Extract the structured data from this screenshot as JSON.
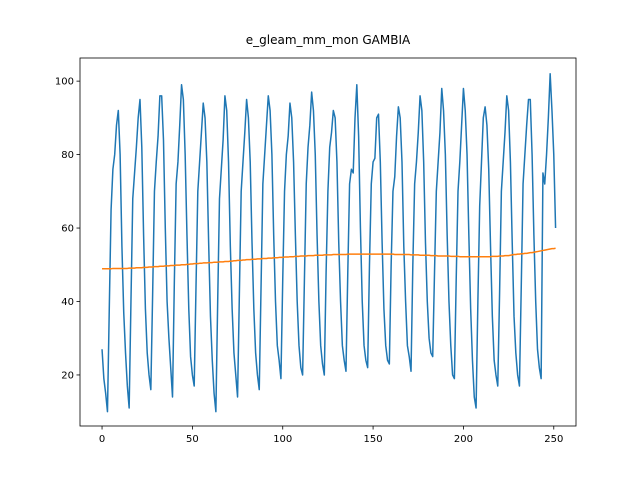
{
  "chart_data": {
    "type": "line",
    "title": "e_gleam_mm_mon GAMBIA",
    "x": [
      0,
      1,
      2,
      3,
      4,
      5,
      6,
      7,
      8,
      9,
      10,
      11,
      12,
      13,
      14,
      15,
      16,
      17,
      18,
      19,
      20,
      21,
      22,
      23,
      24,
      25,
      26,
      27,
      28,
      29,
      30,
      31,
      32,
      33,
      34,
      35,
      36,
      37,
      38,
      39,
      40,
      41,
      42,
      43,
      44,
      45,
      46,
      47,
      48,
      49,
      50,
      51,
      52,
      53,
      54,
      55,
      56,
      57,
      58,
      59,
      60,
      61,
      62,
      63,
      64,
      65,
      66,
      67,
      68,
      69,
      70,
      71,
      72,
      73,
      74,
      75,
      76,
      77,
      78,
      79,
      80,
      81,
      82,
      83,
      84,
      85,
      86,
      87,
      88,
      89,
      90,
      91,
      92,
      93,
      94,
      95,
      96,
      97,
      98,
      99,
      100,
      101,
      102,
      103,
      104,
      105,
      106,
      107,
      108,
      109,
      110,
      111,
      112,
      113,
      114,
      115,
      116,
      117,
      118,
      119,
      120,
      121,
      122,
      123,
      124,
      125,
      126,
      127,
      128,
      129,
      130,
      131,
      132,
      133,
      134,
      135,
      136,
      137,
      138,
      139,
      140,
      141,
      142,
      143,
      144,
      145,
      146,
      147,
      148,
      149,
      150,
      151,
      152,
      153,
      154,
      155,
      156,
      157,
      158,
      159,
      160,
      161,
      162,
      163,
      164,
      165,
      166,
      167,
      168,
      169,
      170,
      171,
      172,
      173,
      174,
      175,
      176,
      177,
      178,
      179,
      180,
      181,
      182,
      183,
      184,
      185,
      186,
      187,
      188,
      189,
      190,
      191,
      192,
      193,
      194,
      195,
      196,
      197,
      198,
      199,
      200,
      201,
      202,
      203,
      204,
      205,
      206,
      207,
      208,
      209,
      210,
      211,
      212,
      213,
      214,
      215,
      216,
      217,
      218,
      219,
      220,
      221,
      222,
      223,
      224,
      225,
      226,
      227,
      228,
      229,
      230,
      231,
      232,
      233,
      234,
      235,
      236,
      237,
      238,
      239,
      240,
      241,
      242,
      243,
      244,
      245,
      246,
      247,
      248,
      249,
      250,
      251
    ],
    "series": [
      {
        "color": "#1f77b4",
        "values": [
          27,
          19,
          15,
          10,
          38,
          65,
          76,
          80,
          88,
          92,
          80,
          55,
          37,
          26,
          17,
          11,
          40,
          68,
          75,
          82,
          90,
          95,
          82,
          58,
          38,
          26,
          20,
          16,
          42,
          70,
          78,
          85,
          96,
          96,
          84,
          60,
          40,
          30,
          22,
          14,
          45,
          72,
          78,
          88,
          99,
          95,
          80,
          58,
          38,
          25,
          20,
          17,
          44,
          70,
          78,
          86,
          94,
          90,
          78,
          56,
          36,
          24,
          15,
          10,
          40,
          68,
          76,
          84,
          96,
          92,
          78,
          55,
          38,
          26,
          20,
          14,
          42,
          70,
          78,
          86,
          95,
          90,
          78,
          56,
          38,
          26,
          20,
          16,
          44,
          72,
          80,
          88,
          96,
          92,
          80,
          58,
          40,
          28,
          24,
          19,
          46,
          70,
          80,
          85,
          94,
          90,
          78,
          58,
          40,
          28,
          22,
          20,
          46,
          72,
          82,
          88,
          97,
          92,
          80,
          58,
          40,
          28,
          23,
          20,
          48,
          70,
          82,
          86,
          92,
          90,
          78,
          56,
          40,
          28,
          24,
          21,
          48,
          72,
          76,
          75,
          90,
          99,
          85,
          60,
          40,
          28,
          24,
          22,
          50,
          72,
          78,
          79,
          90,
          91,
          78,
          56,
          38,
          28,
          24,
          23,
          50,
          70,
          74,
          85,
          93,
          90,
          78,
          55,
          40,
          28,
          25,
          21,
          50,
          72,
          78,
          86,
          96,
          92,
          78,
          56,
          40,
          30,
          26,
          25,
          48,
          70,
          78,
          86,
          98,
          92,
          80,
          58,
          40,
          28,
          20,
          19,
          46,
          70,
          78,
          88,
          98,
          92,
          80,
          58,
          38,
          24,
          14,
          11,
          40,
          66,
          78,
          90,
          93,
          88,
          76,
          55,
          36,
          24,
          20,
          17,
          42,
          70,
          78,
          86,
          96,
          92,
          78,
          56,
          36,
          26,
          20,
          17,
          44,
          72,
          80,
          88,
          95,
          95,
          80,
          58,
          40,
          27,
          22,
          19,
          75,
          72,
          80,
          90,
          102,
          92,
          80,
          60
        ]
      },
      {
        "color": "#ff7f0e",
        "values": [
          48.9,
          48.9,
          48.9,
          48.9,
          48.9,
          48.9,
          49.0,
          49.0,
          49.0,
          49.0,
          49.0,
          49.0,
          49.0,
          49.0,
          49.0,
          49.1,
          49.1,
          49.1,
          49.1,
          49.2,
          49.2,
          49.2,
          49.2,
          49.3,
          49.3,
          49.3,
          49.4,
          49.4,
          49.4,
          49.5,
          49.5,
          49.5,
          49.6,
          49.6,
          49.6,
          49.7,
          49.7,
          49.7,
          49.8,
          49.8,
          49.8,
          49.9,
          49.9,
          49.9,
          50.0,
          50.0,
          50.0,
          50.1,
          50.1,
          50.2,
          50.2,
          50.3,
          50.3,
          50.3,
          50.4,
          50.4,
          50.5,
          50.5,
          50.5,
          50.6,
          50.6,
          50.6,
          50.7,
          50.7,
          50.7,
          50.8,
          50.8,
          50.8,
          50.9,
          50.9,
          50.9,
          51.0,
          51.0,
          51.1,
          51.1,
          51.2,
          51.2,
          51.2,
          51.3,
          51.3,
          51.4,
          51.4,
          51.4,
          51.5,
          51.5,
          51.5,
          51.6,
          51.6,
          51.6,
          51.7,
          51.7,
          51.7,
          51.8,
          51.8,
          51.8,
          51.9,
          51.9,
          51.9,
          52.0,
          52.0,
          52.0,
          52.1,
          52.1,
          52.1,
          52.2,
          52.2,
          52.2,
          52.3,
          52.3,
          52.3,
          52.4,
          52.4,
          52.4,
          52.4,
          52.5,
          52.5,
          52.5,
          52.5,
          52.6,
          52.6,
          52.6,
          52.6,
          52.6,
          52.7,
          52.7,
          52.7,
          52.7,
          52.7,
          52.8,
          52.8,
          52.8,
          52.8,
          52.8,
          52.8,
          52.8,
          52.8,
          52.9,
          52.9,
          52.9,
          52.9,
          52.9,
          52.9,
          52.9,
          52.9,
          52.9,
          52.9,
          52.9,
          52.9,
          52.9,
          52.9,
          52.9,
          52.9,
          52.9,
          52.9,
          52.9,
          52.9,
          52.9,
          52.9,
          52.9,
          52.9,
          52.9,
          52.9,
          52.8,
          52.8,
          52.8,
          52.8,
          52.8,
          52.8,
          52.8,
          52.8,
          52.8,
          52.7,
          52.7,
          52.7,
          52.7,
          52.7,
          52.6,
          52.6,
          52.6,
          52.6,
          52.6,
          52.6,
          52.5,
          52.5,
          52.5,
          52.5,
          52.4,
          52.4,
          52.4,
          52.4,
          52.4,
          52.4,
          52.4,
          52.3,
          52.3,
          52.3,
          52.3,
          52.3,
          52.2,
          52.2,
          52.2,
          52.2,
          52.2,
          52.2,
          52.2,
          52.2,
          52.2,
          52.2,
          52.2,
          52.2,
          52.2,
          52.2,
          52.2,
          52.2,
          52.2,
          52.2,
          52.3,
          52.3,
          52.3,
          52.3,
          52.4,
          52.4,
          52.4,
          52.5,
          52.5,
          52.5,
          52.6,
          52.7,
          52.8,
          52.8,
          52.9,
          52.9,
          53.0,
          53.0,
          53.1,
          53.1,
          53.2,
          53.3,
          53.3,
          53.4,
          53.5,
          53.6,
          53.7,
          53.8,
          53.9,
          54.0,
          54.1,
          54.2,
          54.3,
          54.4,
          54.4,
          54.5
        ]
      }
    ],
    "xlim": [
      -12.2,
      262.3
    ],
    "ylim": [
      6.1,
      106.3
    ],
    "xticks": [
      0,
      50,
      100,
      150,
      200,
      250
    ],
    "yticks": [
      20,
      40,
      60,
      80,
      100
    ]
  }
}
